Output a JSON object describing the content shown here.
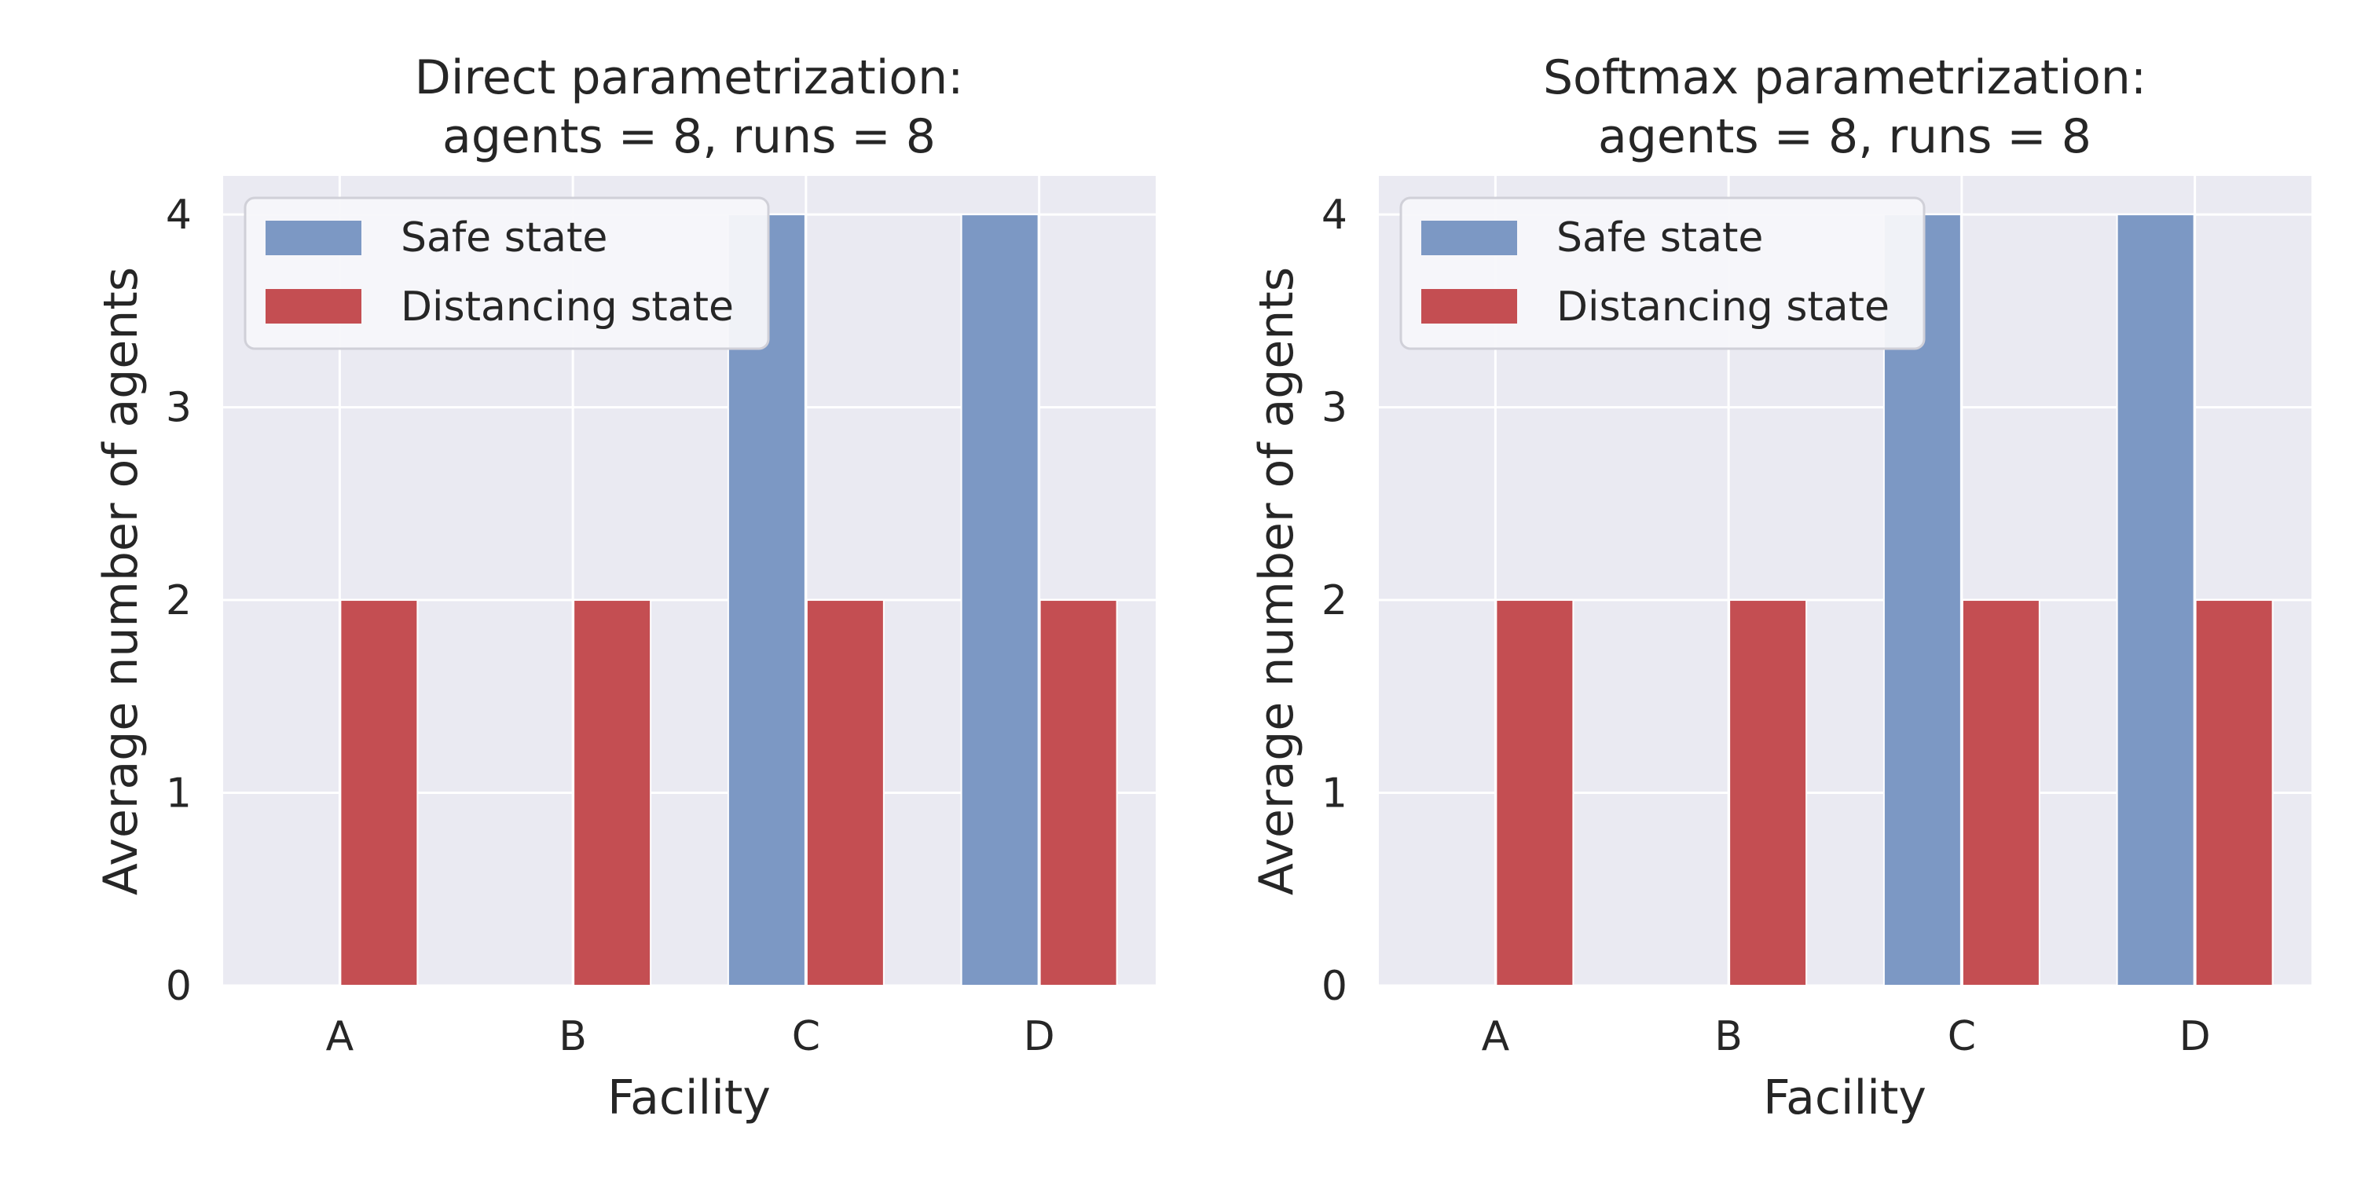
{
  "chart_data": [
    {
      "type": "bar",
      "title_line1": "Direct parametrization:",
      "title_line2": "agents = 8, runs = 8",
      "xlabel": "Facility",
      "ylabel": "Average number of agents",
      "categories": [
        "A",
        "B",
        "C",
        "D"
      ],
      "series": [
        {
          "name": "Safe state",
          "color": "#7c98c4",
          "values": [
            0,
            0,
            4,
            4
          ]
        },
        {
          "name": "Distancing state",
          "color": "#c44e52",
          "values": [
            2,
            2,
            2,
            2
          ]
        }
      ],
      "ylim": [
        0,
        4.2
      ],
      "yticks": [
        "0",
        "1",
        "2",
        "3",
        "4"
      ],
      "grid": true,
      "background": "#eaeaf2",
      "legend_position": "upper-left"
    },
    {
      "type": "bar",
      "title_line1": "Softmax parametrization:",
      "title_line2": "agents = 8, runs = 8",
      "xlabel": "Facility",
      "ylabel": "Average number of agents",
      "categories": [
        "A",
        "B",
        "C",
        "D"
      ],
      "series": [
        {
          "name": "Safe state",
          "color": "#7c98c4",
          "values": [
            0,
            0,
            4,
            4
          ]
        },
        {
          "name": "Distancing state",
          "color": "#c44e52",
          "values": [
            2,
            2,
            2,
            2
          ]
        }
      ],
      "ylim": [
        0,
        4.2
      ],
      "yticks": [
        "0",
        "1",
        "2",
        "3",
        "4"
      ],
      "grid": true,
      "background": "#eaeaf2",
      "legend_position": "upper-left"
    }
  ]
}
